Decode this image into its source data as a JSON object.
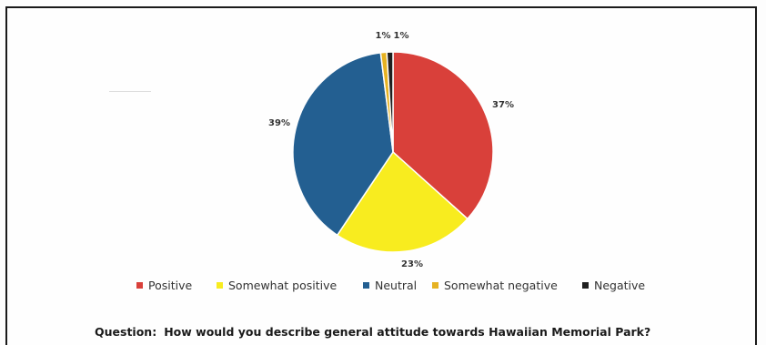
{
  "chart_data": {
    "type": "pie",
    "title": "",
    "categories": [
      "Positive",
      "Somewhat positive",
      "Neutral",
      "Somewhat negative",
      "Negative"
    ],
    "values": [
      37,
      23,
      39,
      1,
      1
    ],
    "labels": [
      "37%",
      "23%",
      "39%",
      "1%",
      "1%"
    ],
    "colors": [
      "#d9403a",
      "#f8ec1f",
      "#235f91",
      "#e6b222",
      "#1f1f1f"
    ],
    "legend_position": "bottom",
    "start_angle_deg": 0,
    "direction": "clockwise"
  },
  "legend": {
    "items": [
      {
        "label": "Positive",
        "color": "#d9403a"
      },
      {
        "label": "Somewhat positive",
        "color": "#f8ec1f"
      },
      {
        "label": "Neutral",
        "color": "#235f91"
      },
      {
        "label": "Somewhat negative",
        "color": "#e6b222"
      },
      {
        "label": "Negative",
        "color": "#1f1f1f"
      }
    ]
  },
  "question": {
    "label": "Question:",
    "text": "How would you describe general attitude towards Hawaiian Memorial Park?"
  }
}
